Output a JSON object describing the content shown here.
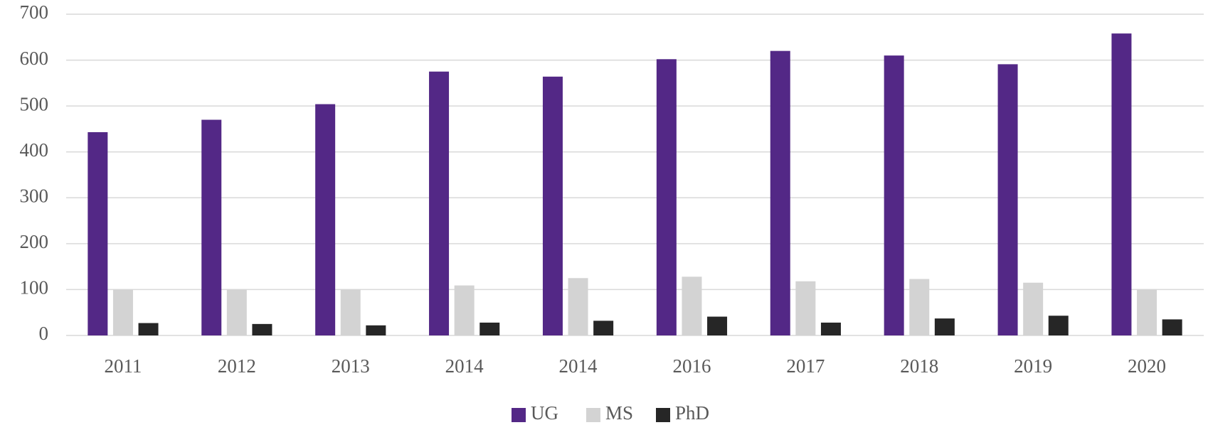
{
  "chart_data": {
    "type": "bar",
    "categories": [
      "2011",
      "2012",
      "2013",
      "2014",
      "2014",
      "2016",
      "2017",
      "2018",
      "2019",
      "2020"
    ],
    "series": [
      {
        "name": "UG",
        "color": "#532886",
        "values": [
          443,
          470,
          504,
          575,
          564,
          602,
          620,
          610,
          591,
          658
        ]
      },
      {
        "name": "MS",
        "color": "#d3d3d3",
        "values": [
          100,
          100,
          100,
          109,
          125,
          128,
          118,
          123,
          115,
          100
        ]
      },
      {
        "name": "PhD",
        "color": "#262626",
        "values": [
          27,
          25,
          22,
          28,
          32,
          41,
          28,
          37,
          43,
          35
        ]
      }
    ],
    "ylim": [
      0,
      700
    ],
    "yticks": [
      0,
      100,
      200,
      300,
      400,
      500,
      600,
      700
    ],
    "grid": true,
    "legend": "bottom"
  }
}
